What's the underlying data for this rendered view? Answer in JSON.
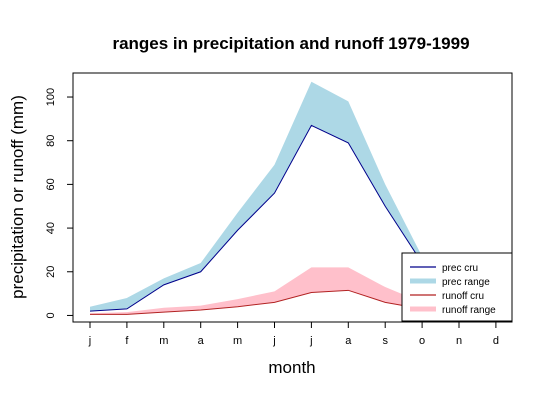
{
  "chart_data": {
    "type": "line",
    "title": "ranges in precipitation and runoff 1979-1999",
    "xlabel": "month",
    "ylabel": "precipitation or runoff (mm)",
    "categories": [
      "j",
      "f",
      "m",
      "a",
      "m",
      "j",
      "j",
      "a",
      "s",
      "o",
      "n",
      "d"
    ],
    "yticks": [
      0,
      20,
      40,
      60,
      80,
      100
    ],
    "ylim": [
      -3,
      111
    ],
    "series": [
      {
        "name": "prec cru",
        "kind": "line",
        "color": "#00008b",
        "values": [
          2,
          3,
          14,
          20,
          39,
          56,
          87,
          79,
          50,
          24,
          null,
          null
        ]
      },
      {
        "name": "prec range",
        "kind": "band",
        "color": "#add8e6",
        "low": [
          2,
          3,
          14,
          20,
          39,
          56,
          87,
          79,
          50,
          24,
          null,
          null
        ],
        "high": [
          4,
          8,
          17,
          24,
          47,
          69,
          107,
          98,
          60,
          27,
          null,
          null
        ]
      },
      {
        "name": "runoff cru",
        "kind": "line",
        "color": "#b22222",
        "values": [
          0.5,
          0.5,
          1.5,
          2.5,
          4,
          6,
          10.5,
          11.5,
          6,
          3,
          null,
          null
        ]
      },
      {
        "name": "runoff range",
        "kind": "band",
        "color": "#ffc0cb",
        "low": [
          0.5,
          0.5,
          1.5,
          2.5,
          4,
          6,
          10.5,
          11.5,
          6,
          3,
          null,
          null
        ],
        "high": [
          1,
          1.5,
          3.5,
          4.5,
          7.5,
          11,
          22,
          22,
          13,
          6,
          null,
          null
        ]
      }
    ],
    "legend": {
      "position": "bottom-right",
      "entries": [
        "prec cru",
        "prec range",
        "runoff cru",
        "runoff range"
      ]
    },
    "grid": false
  }
}
